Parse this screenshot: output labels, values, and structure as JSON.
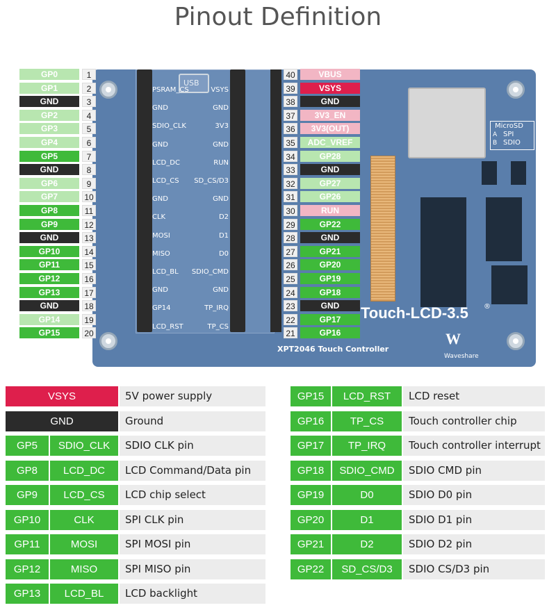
{
  "title": "Pinout Definition",
  "colors": {
    "gp_dark": "#3fba3a",
    "gp_light": "#b8e6b0",
    "gnd": "#2b2b2b",
    "vsys": "#de1f4c",
    "power_light": "#f2b6c4",
    "board": "#5a7eab"
  },
  "left_pins": [
    {
      "label": "GP0",
      "num": "1",
      "kind": "light"
    },
    {
      "label": "GP1",
      "num": "2",
      "kind": "light"
    },
    {
      "label": "GND",
      "num": "3",
      "kind": "gnd"
    },
    {
      "label": "GP2",
      "num": "4",
      "kind": "light"
    },
    {
      "label": "GP3",
      "num": "5",
      "kind": "light"
    },
    {
      "label": "GP4",
      "num": "6",
      "kind": "light"
    },
    {
      "label": "GP5",
      "num": "7",
      "kind": "dark"
    },
    {
      "label": "GND",
      "num": "8",
      "kind": "gnd"
    },
    {
      "label": "GP6",
      "num": "9",
      "kind": "light"
    },
    {
      "label": "GP7",
      "num": "10",
      "kind": "light"
    },
    {
      "label": "GP8",
      "num": "11",
      "kind": "dark"
    },
    {
      "label": "GP9",
      "num": "12",
      "kind": "dark"
    },
    {
      "label": "GND",
      "num": "13",
      "kind": "gnd"
    },
    {
      "label": "GP10",
      "num": "14",
      "kind": "dark"
    },
    {
      "label": "GP11",
      "num": "15",
      "kind": "dark"
    },
    {
      "label": "GP12",
      "num": "16",
      "kind": "dark"
    },
    {
      "label": "GP13",
      "num": "17",
      "kind": "dark"
    },
    {
      "label": "GND",
      "num": "18",
      "kind": "gnd"
    },
    {
      "label": "GP14",
      "num": "19",
      "kind": "light"
    },
    {
      "label": "GP15",
      "num": "20",
      "kind": "dark"
    }
  ],
  "right_pins": [
    {
      "label": "VBUS",
      "num": "40",
      "kind": "pink"
    },
    {
      "label": "VSYS",
      "num": "39",
      "kind": "vsys"
    },
    {
      "label": "GND",
      "num": "38",
      "kind": "gnd"
    },
    {
      "label": "3V3_EN",
      "num": "37",
      "kind": "pink"
    },
    {
      "label": "3V3(OUT)",
      "num": "36",
      "kind": "pink"
    },
    {
      "label": "ADC_VREF",
      "num": "35",
      "kind": "light"
    },
    {
      "label": "GP28",
      "num": "34",
      "kind": "light"
    },
    {
      "label": "GND",
      "num": "33",
      "kind": "gnd"
    },
    {
      "label": "GP27",
      "num": "32",
      "kind": "light"
    },
    {
      "label": "GP26",
      "num": "31",
      "kind": "light"
    },
    {
      "label": "RUN",
      "num": "30",
      "kind": "pink"
    },
    {
      "label": "GP22",
      "num": "29",
      "kind": "dark"
    },
    {
      "label": "GND",
      "num": "28",
      "kind": "gnd"
    },
    {
      "label": "GP21",
      "num": "27",
      "kind": "dark"
    },
    {
      "label": "GP20",
      "num": "26",
      "kind": "dark"
    },
    {
      "label": "GP19",
      "num": "25",
      "kind": "dark"
    },
    {
      "label": "GP18",
      "num": "24",
      "kind": "dark"
    },
    {
      "label": "GND",
      "num": "23",
      "kind": "gnd"
    },
    {
      "label": "GP17",
      "num": "22",
      "kind": "dark"
    },
    {
      "label": "GP16",
      "num": "21",
      "kind": "dark"
    }
  ],
  "board": {
    "usb_label": "USB",
    "left_silk": [
      "PSRAM_CS",
      "GND",
      "SDIO_CLK",
      "GND",
      "LCD_DC",
      "LCD_CS",
      "GND",
      "CLK",
      "MOSI",
      "MISO",
      "LCD_BL",
      "GND",
      "GP14",
      "LCD_RST"
    ],
    "right_silk": [
      "VSYS",
      "GND",
      "3V3",
      "GND",
      "RUN",
      "SD_CS/D3",
      "GND",
      "D2",
      "D1",
      "D0",
      "SDIO_CMD",
      "GND",
      "TP_IRQ",
      "TP_CS"
    ],
    "microsd_title": "MicroSD",
    "microsd_a_key": "A",
    "microsd_a_val": "SPI",
    "microsd_b_key": "B",
    "microsd_b_val": "SDIO",
    "product_name": "Touch-LCD-3.5",
    "touch_controller": "XPT2046 Touch Controller",
    "brand": "Waveshare",
    "registered": "®"
  },
  "legend_left": [
    {
      "pin": "VSYS",
      "func": "",
      "desc": "5V power supply",
      "kind": "vsys"
    },
    {
      "pin": "GND",
      "func": "",
      "desc": "Ground",
      "kind": "gnd"
    },
    {
      "pin": "GP5",
      "func": "SDIO_CLK",
      "desc": "SDIO CLK pin",
      "kind": "dark"
    },
    {
      "pin": "GP8",
      "func": "LCD_DC",
      "desc": "LCD Command/Data pin",
      "kind": "dark"
    },
    {
      "pin": "GP9",
      "func": "LCD_CS",
      "desc": "LCD chip select",
      "kind": "dark"
    },
    {
      "pin": "GP10",
      "func": "CLK",
      "desc": "SPI CLK pin",
      "kind": "dark"
    },
    {
      "pin": "GP11",
      "func": "MOSI",
      "desc": "SPI MOSI pin",
      "kind": "dark"
    },
    {
      "pin": "GP12",
      "func": "MISO",
      "desc": "SPI MISO pin",
      "kind": "dark"
    },
    {
      "pin": "GP13",
      "func": "LCD_BL",
      "desc": "LCD backlight",
      "kind": "dark"
    }
  ],
  "legend_right": [
    {
      "pin": "GP15",
      "func": "LCD_RST",
      "desc": "LCD reset",
      "kind": "dark"
    },
    {
      "pin": "GP16",
      "func": "TP_CS",
      "desc": "Touch controller chip select",
      "kind": "dark"
    },
    {
      "pin": "GP17",
      "func": "TP_IRQ",
      "desc": "Touch controller interrupt",
      "kind": "dark"
    },
    {
      "pin": "GP18",
      "func": "SDIO_CMD",
      "desc": "SDIO CMD pin",
      "kind": "dark"
    },
    {
      "pin": "GP19",
      "func": "D0",
      "desc": "SDIO D0 pin",
      "kind": "dark"
    },
    {
      "pin": "GP20",
      "func": "D1",
      "desc": "SDIO D1 pin",
      "kind": "dark"
    },
    {
      "pin": "GP21",
      "func": "D2",
      "desc": "SDIO D2 pin",
      "kind": "dark"
    },
    {
      "pin": "GP22",
      "func": "SD_CS/D3",
      "desc": "SDIO CS/D3 pin",
      "kind": "dark"
    }
  ]
}
